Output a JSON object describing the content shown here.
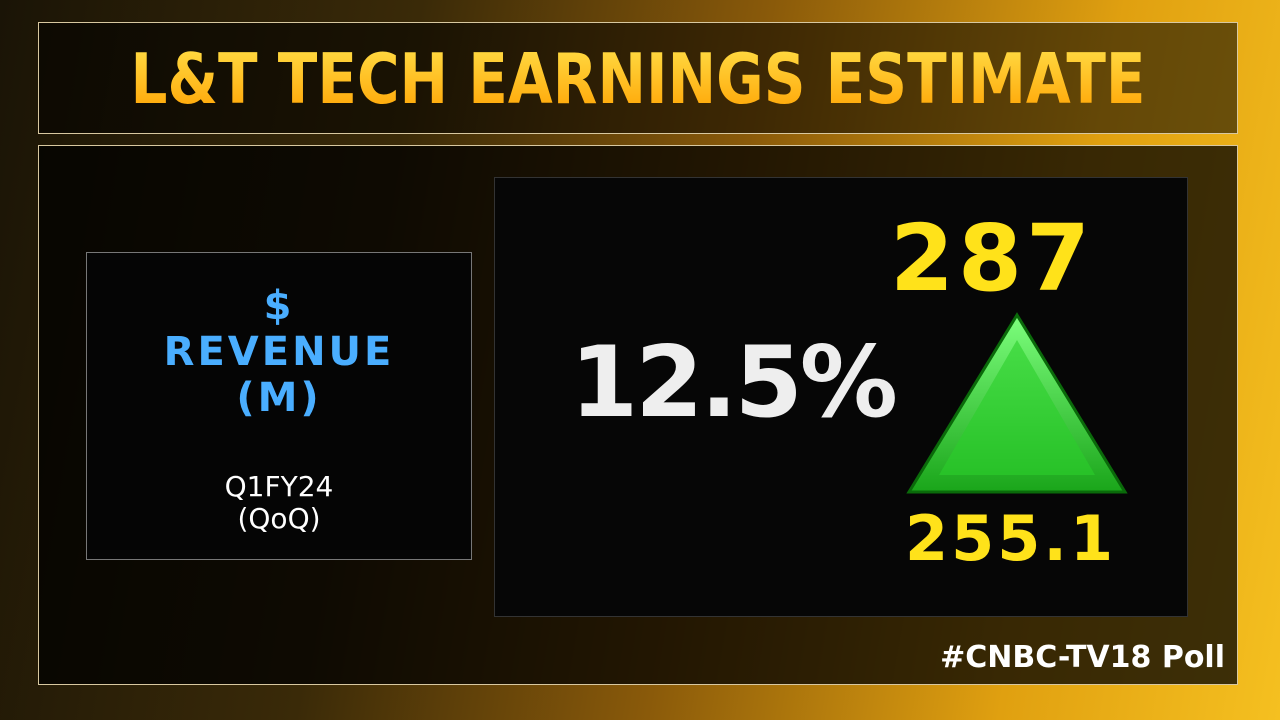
{
  "header": {
    "title": "L&T TECH EARNINGS ESTIMATE"
  },
  "metric": {
    "symbol": "$",
    "name": "REVENUE",
    "unit": "(M)",
    "period": "Q1FY24",
    "basis": "(QoQ)"
  },
  "estimate": {
    "change": "12.5%",
    "current": "287",
    "previous": "255.1"
  },
  "footer": {
    "tag": "#CNBC-TV18 Poll"
  }
}
